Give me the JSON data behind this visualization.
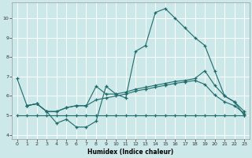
{
  "xlabel": "Humidex (Indice chaleur)",
  "bg_color": "#cce8e8",
  "line_color": "#1e6b6b",
  "grid_color": "#ffffff",
  "xlim": [
    -0.5,
    23.5
  ],
  "ylim": [
    3.8,
    10.8
  ],
  "yticks": [
    4,
    5,
    6,
    7,
    8,
    9,
    10
  ],
  "xticks": [
    0,
    1,
    2,
    3,
    4,
    5,
    6,
    7,
    8,
    9,
    10,
    11,
    12,
    13,
    14,
    15,
    16,
    17,
    18,
    19,
    20,
    21,
    22,
    23
  ],
  "line1_x": [
    0,
    1,
    2,
    3,
    4,
    5,
    6,
    7,
    8,
    9,
    10,
    11,
    12,
    13,
    14,
    15,
    16,
    17,
    18,
    19,
    20,
    21,
    22,
    23
  ],
  "line1_y": [
    6.9,
    5.5,
    5.6,
    5.2,
    4.6,
    4.8,
    4.4,
    4.4,
    4.7,
    6.5,
    6.1,
    5.9,
    8.3,
    8.6,
    10.3,
    10.5,
    10.0,
    9.5,
    9.0,
    8.6,
    7.3,
    6.0,
    5.7,
    5.0
  ],
  "line2_x": [
    0,
    1,
    2,
    3,
    4,
    5,
    6,
    7,
    8,
    9,
    10,
    11,
    12,
    13,
    14,
    15,
    16,
    17,
    18,
    19,
    20,
    21,
    22,
    23
  ],
  "line2_y": [
    5.0,
    5.0,
    5.0,
    5.0,
    5.0,
    5.0,
    5.0,
    5.0,
    5.0,
    5.0,
    5.0,
    5.0,
    5.0,
    5.0,
    5.0,
    5.0,
    5.0,
    5.0,
    5.0,
    5.0,
    5.0,
    5.0,
    5.0,
    5.0
  ],
  "line3_x": [
    1,
    2,
    3,
    4,
    5,
    6,
    7,
    8,
    9,
    10,
    11,
    12,
    13,
    14,
    15,
    16,
    17,
    18,
    19,
    20,
    21,
    22,
    23
  ],
  "line3_y": [
    5.5,
    5.6,
    5.2,
    5.2,
    5.4,
    5.5,
    5.5,
    6.5,
    6.1,
    6.1,
    6.2,
    6.35,
    6.45,
    6.55,
    6.65,
    6.75,
    6.8,
    6.9,
    7.3,
    6.55,
    6.0,
    5.7,
    5.2
  ],
  "line4_x": [
    1,
    2,
    3,
    4,
    5,
    6,
    7,
    8,
    9,
    10,
    11,
    12,
    13,
    14,
    15,
    16,
    17,
    18,
    19,
    20,
    21,
    22,
    23
  ],
  "line4_y": [
    5.5,
    5.6,
    5.2,
    5.2,
    5.4,
    5.5,
    5.5,
    5.8,
    5.9,
    6.0,
    6.1,
    6.25,
    6.35,
    6.45,
    6.55,
    6.65,
    6.72,
    6.8,
    6.6,
    6.05,
    5.7,
    5.5,
    5.1
  ]
}
